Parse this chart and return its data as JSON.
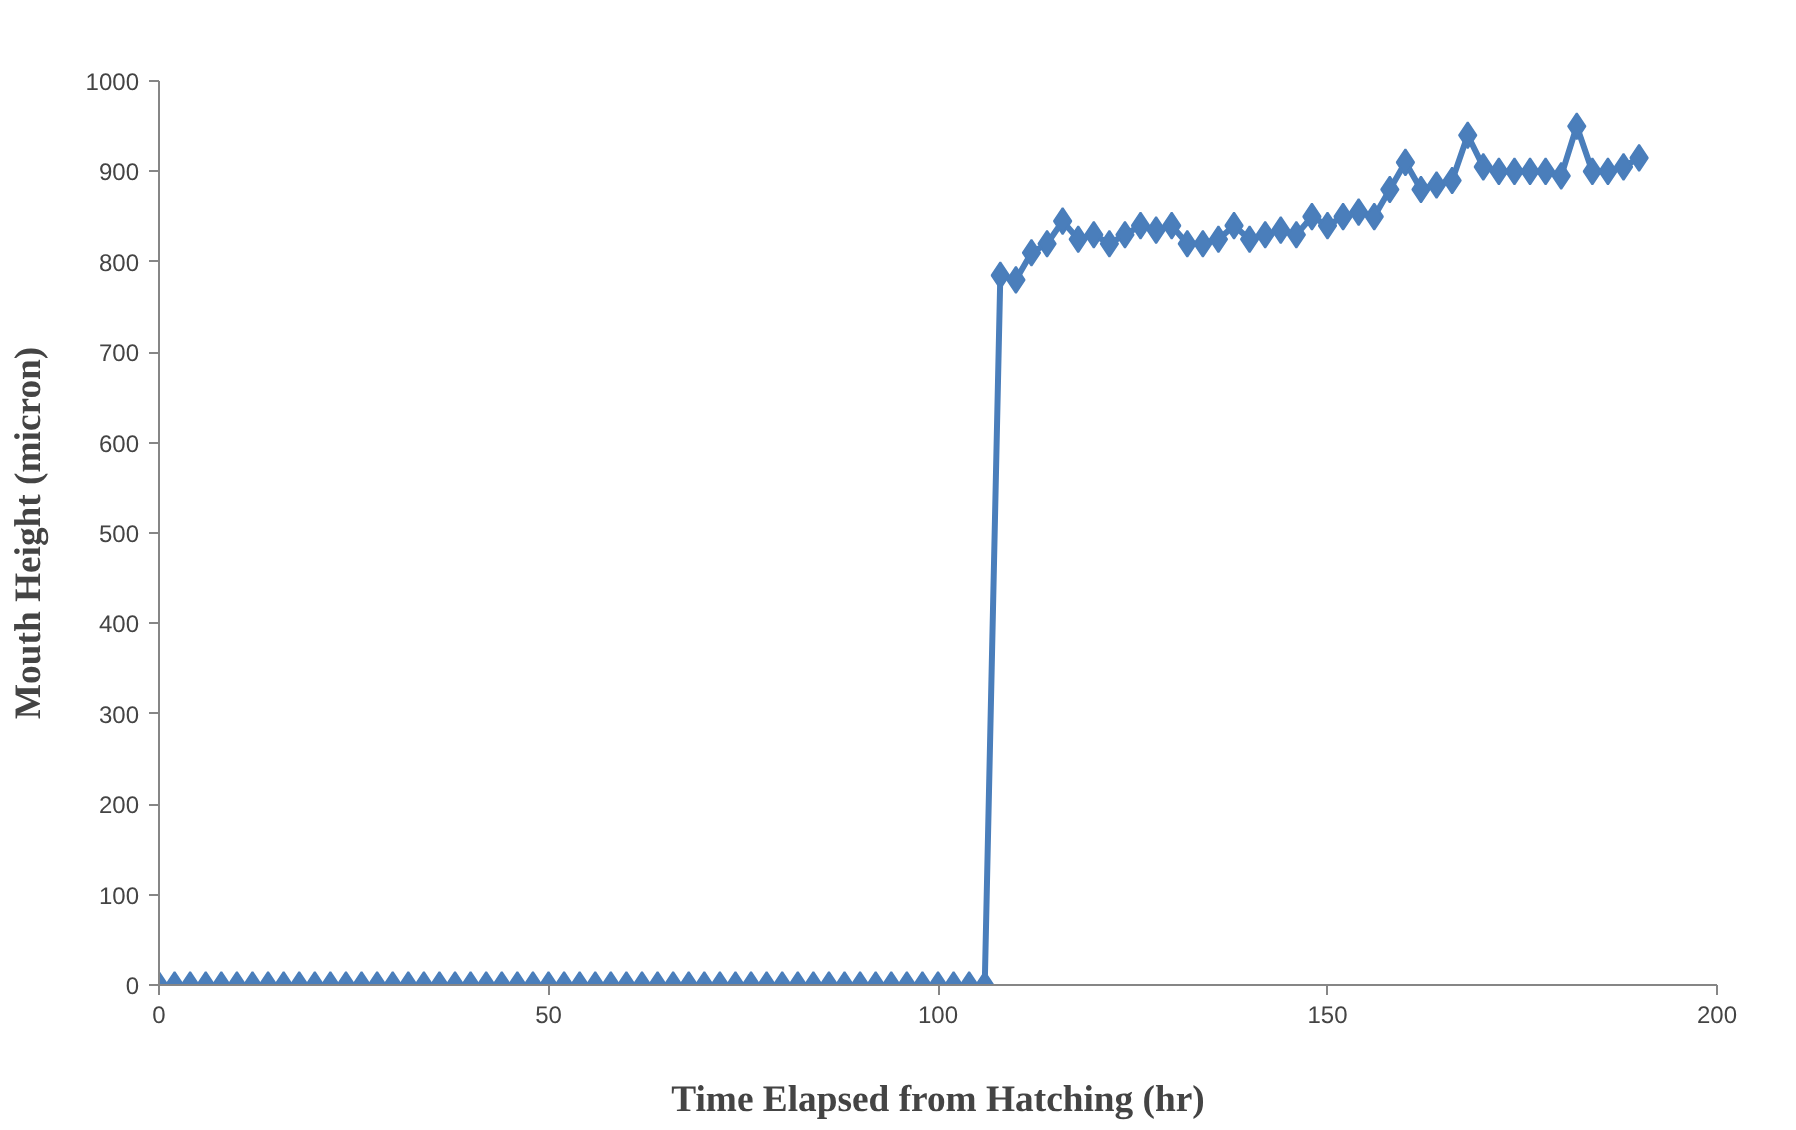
{
  "chart_data": {
    "type": "line",
    "xlabel": "Time Elapsed from Hatching (hr)",
    "ylabel": "Mouth Height (micron)",
    "x": [
      0,
      2,
      4,
      6,
      8,
      10,
      12,
      14,
      16,
      18,
      20,
      22,
      24,
      26,
      28,
      30,
      32,
      34,
      36,
      38,
      40,
      42,
      44,
      46,
      48,
      50,
      52,
      54,
      56,
      58,
      60,
      62,
      64,
      66,
      68,
      70,
      72,
      74,
      76,
      78,
      80,
      82,
      84,
      86,
      88,
      90,
      92,
      94,
      96,
      98,
      100,
      102,
      104,
      106,
      108,
      110,
      112,
      114,
      116,
      118,
      120,
      122,
      124,
      126,
      128,
      130,
      132,
      134,
      136,
      138,
      140,
      142,
      144,
      146,
      148,
      150,
      152,
      154,
      156,
      158,
      160,
      162,
      164,
      166,
      168,
      170,
      172,
      174,
      176,
      178,
      180,
      182,
      184,
      186,
      188,
      190
    ],
    "series": [
      {
        "color": "#4a7ebb",
        "values": [
          0,
          0,
          0,
          0,
          0,
          0,
          0,
          0,
          0,
          0,
          0,
          0,
          0,
          0,
          0,
          0,
          0,
          0,
          0,
          0,
          0,
          0,
          0,
          0,
          0,
          0,
          0,
          0,
          0,
          0,
          0,
          0,
          0,
          0,
          0,
          0,
          0,
          0,
          0,
          0,
          0,
          0,
          0,
          0,
          0,
          0,
          0,
          0,
          0,
          0,
          0,
          0,
          0,
          0,
          785,
          780,
          810,
          820,
          845,
          825,
          830,
          820,
          830,
          840,
          835,
          840,
          820,
          820,
          825,
          840,
          825,
          830,
          835,
          830,
          850,
          840,
          850,
          855,
          850,
          880,
          910,
          880,
          885,
          890,
          940,
          905,
          900,
          900,
          900,
          900,
          895,
          950,
          900,
          900,
          905,
          915
        ]
      }
    ],
    "xlim": [
      0,
      200
    ],
    "xticks": [
      0,
      50,
      100,
      150,
      200
    ],
    "ylim": [
      0,
      1000
    ],
    "yticks": [
      0,
      100,
      200,
      300,
      400,
      500,
      600,
      700,
      800,
      900,
      1000
    ],
    "grid": false,
    "marker": "diamond",
    "line_style": "solid"
  }
}
